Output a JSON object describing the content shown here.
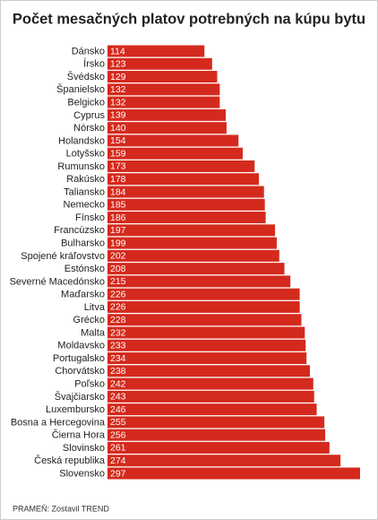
{
  "chart_data": {
    "type": "bar",
    "orientation": "horizontal",
    "title": "Počet mesačných platov potrebných na kúpu bytu",
    "source": "PRAMEŇ: Zostavil TREND",
    "color": "#d42a1e",
    "categories": [
      "Dánsko",
      "Írsko",
      "Švédsko",
      "Španielsko",
      "Belgicko",
      "Cyprus",
      "Nórsko",
      "Holandsko",
      "Lotyšsko",
      "Rumunsko",
      "Rakúsko",
      "Taliansko",
      "Nemecko",
      "Fínsko",
      "Francúzsko",
      "Bulharsko",
      "Spojené kráľovstvo",
      "Estónsko",
      "Severné Macedónsko",
      "Maďarsko",
      "Litva",
      "Grécko",
      "Malta",
      "Moldavsko",
      "Portugalsko",
      "Chorvátsko",
      "Poľsko",
      "Švajčiarsko",
      "Luxembursko",
      "Bosna a Hercegovina",
      "Čierna Hora",
      "Slovinsko",
      "Česká republika",
      "Slovensko"
    ],
    "values": [
      114,
      123,
      129,
      132,
      132,
      139,
      140,
      154,
      159,
      173,
      178,
      184,
      185,
      186,
      197,
      199,
      202,
      208,
      215,
      226,
      226,
      228,
      232,
      233,
      234,
      238,
      242,
      243,
      246,
      255,
      256,
      261,
      274,
      297
    ]
  }
}
